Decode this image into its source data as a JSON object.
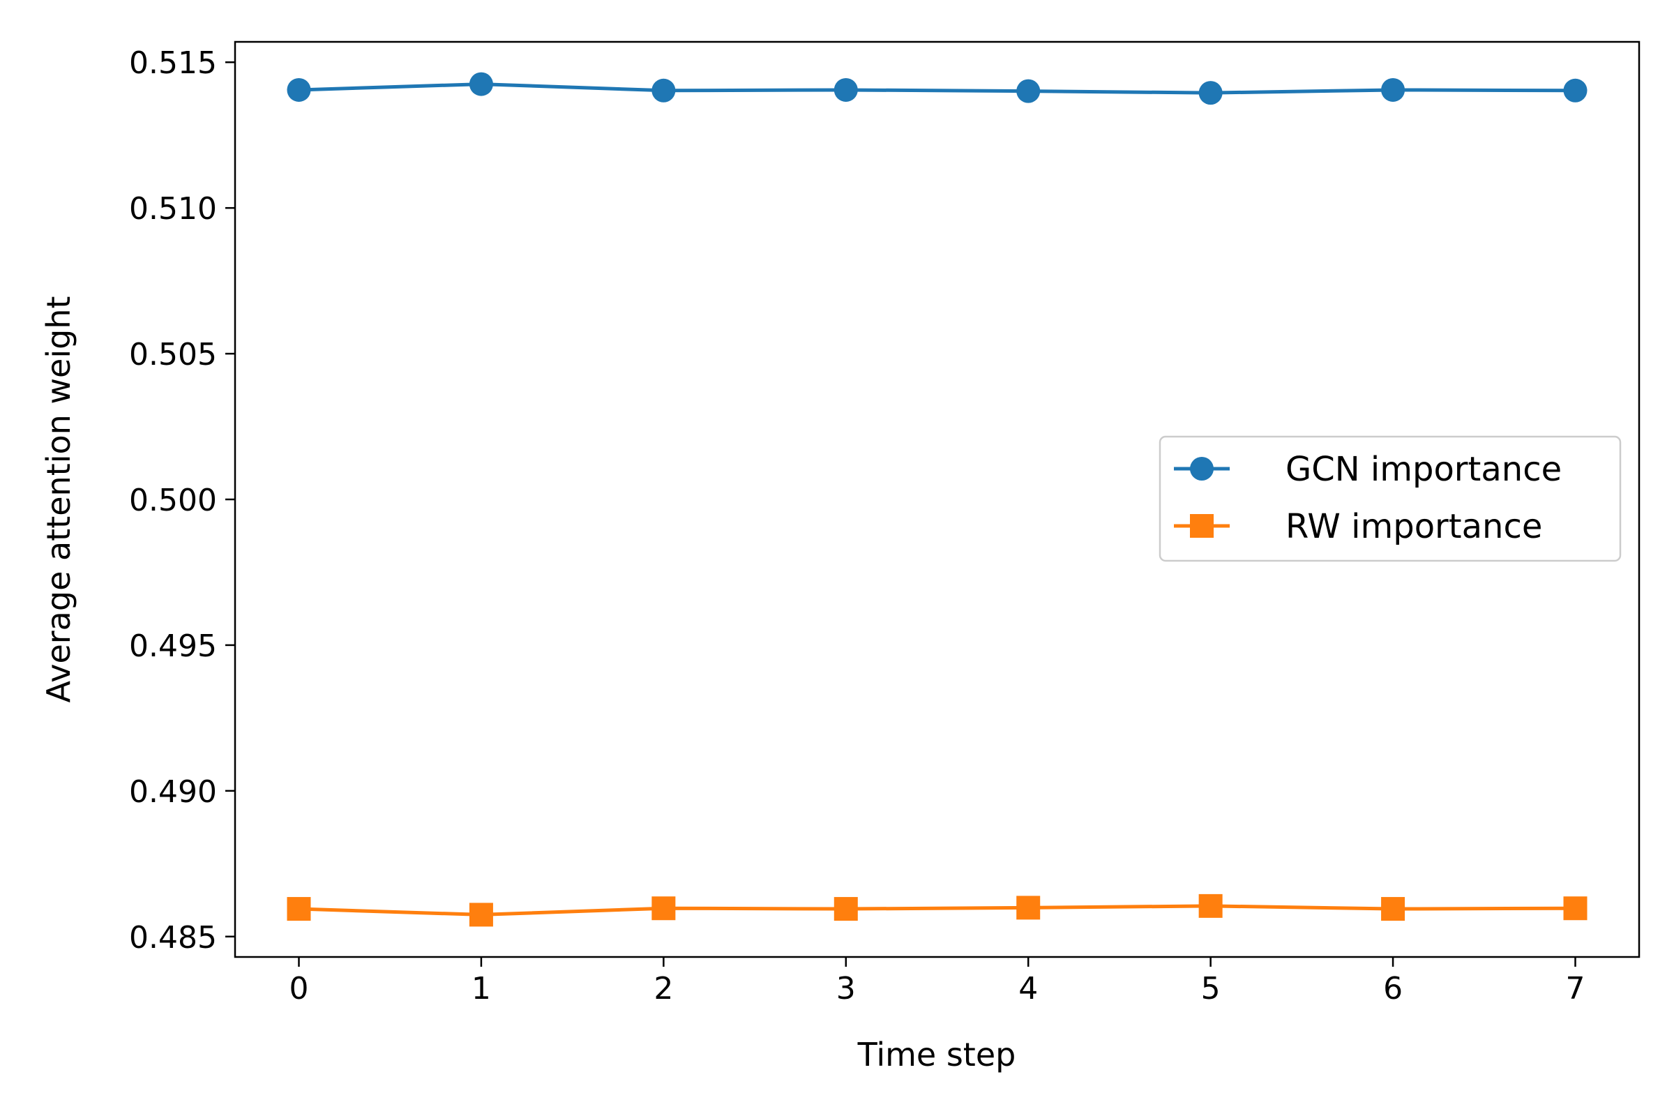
{
  "chart_data": {
    "type": "line",
    "xlabel": "Time step",
    "ylabel": "Average attention weight",
    "x": [
      0,
      1,
      2,
      3,
      4,
      5,
      6,
      7
    ],
    "xlim": [
      -0.35,
      7.35
    ],
    "ylim": [
      0.4843,
      0.5157
    ],
    "xticks": [
      0,
      1,
      2,
      3,
      4,
      5,
      6,
      7
    ],
    "yticks": [
      0.485,
      0.49,
      0.495,
      0.5,
      0.505,
      0.51,
      0.515
    ],
    "ytick_labels": [
      "0.485",
      "0.490",
      "0.495",
      "0.500",
      "0.505",
      "0.510",
      "0.515"
    ],
    "grid": false,
    "legend_position": "center-right",
    "series": [
      {
        "name": "GCN importance",
        "color": "#1f77b4",
        "marker": "circle",
        "values": [
          0.51405,
          0.51425,
          0.51403,
          0.51405,
          0.51401,
          0.51395,
          0.51405,
          0.51403
        ]
      },
      {
        "name": "RW importance",
        "color": "#ff7f0e",
        "marker": "square",
        "values": [
          0.48595,
          0.48575,
          0.48597,
          0.48595,
          0.48599,
          0.48605,
          0.48595,
          0.48597
        ]
      }
    ]
  }
}
